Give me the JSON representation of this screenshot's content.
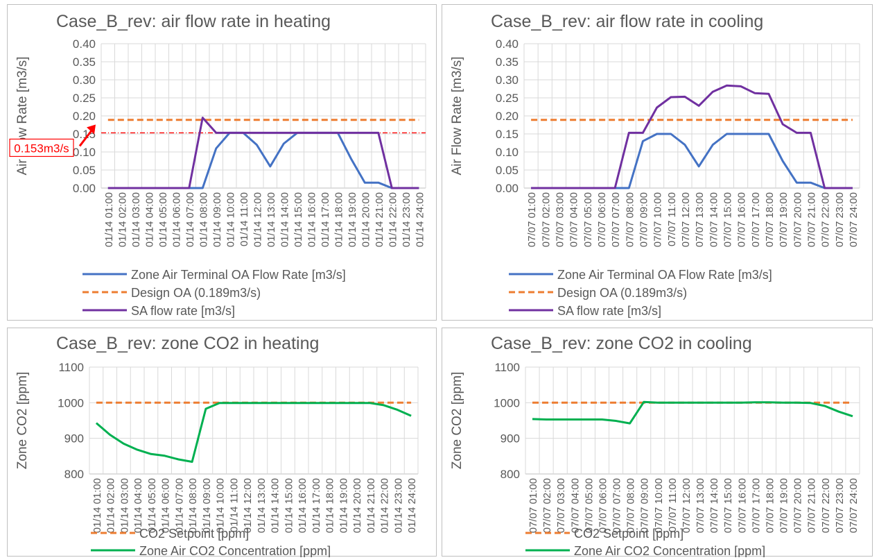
{
  "colors": {
    "oa_flow": "#4472C4",
    "design_oa": "#ED7D31",
    "sa_flow": "#7030A0",
    "co2_conc": "#00B050",
    "co2_setpoint": "#ED7D31",
    "annotation": "#FF0000",
    "grid": "#D9D9D9",
    "text": "#595959"
  },
  "chart_data": [
    {
      "type": "line",
      "title": "Case_B_rev: air flow rate in heating",
      "xlabel": "",
      "ylabel": "Air Flow Rate [m3/s]",
      "ylim": [
        0,
        0.4
      ],
      "yticks": [
        "0.00",
        "0.05",
        "0.10",
        "0.15",
        "0.20",
        "0.25",
        "0.30",
        "0.35",
        "0.40"
      ],
      "categories": [
        "01/14  01:00",
        "01/14  02:00",
        "01/14  03:00",
        "01/14  04:00",
        "01/14  05:00",
        "01/14  06:00",
        "01/14  07:00",
        "01/14  08:00",
        "01/14  09:00",
        "01/14  10:00",
        "01/14  11:00",
        "01/14  12:00",
        "01/14  13:00",
        "01/14  14:00",
        "01/14  15:00",
        "01/14  16:00",
        "01/14  17:00",
        "01/14  18:00",
        "01/14  19:00",
        "01/14  20:00",
        "01/14  21:00",
        "01/14  22:00",
        "01/14  23:00",
        "01/14  24:00"
      ],
      "series": [
        {
          "name": "Zone Air Terminal OA Flow Rate [m3/s]",
          "style": "solid",
          "values": [
            0,
            0,
            0,
            0,
            0,
            0,
            0,
            0,
            0.11,
            0.153,
            0.153,
            0.12,
            0.06,
            0.123,
            0.153,
            0.153,
            0.153,
            0.153,
            0.08,
            0.015,
            0.015,
            0,
            0,
            0
          ]
        },
        {
          "name": "Design OA  (0.189m3/s)",
          "style": "dashed",
          "values": [
            0.189,
            0.189,
            0.189,
            0.189,
            0.189,
            0.189,
            0.189,
            0.189,
            0.189,
            0.189,
            0.189,
            0.189,
            0.189,
            0.189,
            0.189,
            0.189,
            0.189,
            0.189,
            0.189,
            0.189,
            0.189,
            0.189,
            0.189,
            0.189
          ]
        },
        {
          "name": "SA flow rate [m3/s]",
          "style": "solid",
          "values": [
            0,
            0,
            0,
            0,
            0,
            0,
            0,
            0.195,
            0.153,
            0.153,
            0.153,
            0.153,
            0.153,
            0.153,
            0.153,
            0.153,
            0.153,
            0.153,
            0.153,
            0.153,
            0.153,
            0,
            0,
            0
          ]
        }
      ],
      "annotation": {
        "text": "0.153m3/s",
        "value": 0.153
      }
    },
    {
      "type": "line",
      "title": "Case_B_rev: air flow rate in cooling",
      "xlabel": "",
      "ylabel": "Air Flow Rate [m3/s]",
      "ylim": [
        0,
        0.4
      ],
      "yticks": [
        "0.00",
        "0.05",
        "0.10",
        "0.15",
        "0.20",
        "0.25",
        "0.30",
        "0.35",
        "0.40"
      ],
      "categories": [
        "07/07  01:00",
        "07/07  02:00",
        "07/07  03:00",
        "07/07  04:00",
        "07/07  05:00",
        "07/07  06:00",
        "07/07  07:00",
        "07/07  08:00",
        "07/07  09:00",
        "07/07  10:00",
        "07/07  11:00",
        "07/07  12:00",
        "07/07  13:00",
        "07/07  14:00",
        "07/07  15:00",
        "07/07  16:00",
        "07/07  17:00",
        "07/07  18:00",
        "07/07  19:00",
        "07/07  20:00",
        "07/07  21:00",
        "07/07  22:00",
        "07/07  23:00",
        "07/07  24:00"
      ],
      "series": [
        {
          "name": "Zone Air Terminal OA Flow Rate [m3/s]",
          "style": "solid",
          "values": [
            0,
            0,
            0,
            0,
            0,
            0,
            0,
            0,
            0.13,
            0.15,
            0.15,
            0.12,
            0.06,
            0.12,
            0.15,
            0.15,
            0.15,
            0.15,
            0.075,
            0.015,
            0.015,
            0,
            0,
            0
          ]
        },
        {
          "name": "Design OA  (0.189m3/s)",
          "style": "dashed",
          "values": [
            0.189,
            0.189,
            0.189,
            0.189,
            0.189,
            0.189,
            0.189,
            0.189,
            0.189,
            0.189,
            0.189,
            0.189,
            0.189,
            0.189,
            0.189,
            0.189,
            0.189,
            0.189,
            0.189,
            0.189,
            0.189,
            0.189,
            0.189,
            0.189
          ]
        },
        {
          "name": "SA flow rate [m3/s]",
          "style": "solid",
          "values": [
            0,
            0,
            0,
            0,
            0,
            0,
            0,
            0.153,
            0.153,
            0.223,
            0.252,
            0.253,
            0.228,
            0.267,
            0.284,
            0.282,
            0.263,
            0.261,
            0.177,
            0.153,
            0.153,
            0,
            0,
            0
          ]
        }
      ]
    },
    {
      "type": "line",
      "title": "Case_B_rev: zone CO2 in heating",
      "xlabel": "",
      "ylabel": "Zone CO2 [ppm]",
      "ylim": [
        800,
        1100
      ],
      "yticks": [
        "800",
        "900",
        "1000",
        "1100"
      ],
      "categories": [
        "01/14  01:00",
        "01/14  02:00",
        "01/14  03:00",
        "01/14  04:00",
        "01/14  05:00",
        "01/14  06:00",
        "01/14  07:00",
        "01/14  08:00",
        "01/14  09:00",
        "01/14  10:00",
        "01/14  11:00",
        "01/14  12:00",
        "01/14  13:00",
        "01/14  14:00",
        "01/14  15:00",
        "01/14  16:00",
        "01/14  17:00",
        "01/14  18:00",
        "01/14  19:00",
        "01/14  20:00",
        "01/14  21:00",
        "01/14  22:00",
        "01/14  23:00",
        "01/14  24:00"
      ],
      "series": [
        {
          "name": "CO2 Setpoint [ppm]",
          "style": "dashed",
          "values": [
            1000,
            1000,
            1000,
            1000,
            1000,
            1000,
            1000,
            1000,
            1000,
            1000,
            1000,
            1000,
            1000,
            1000,
            1000,
            1000,
            1000,
            1000,
            1000,
            1000,
            1000,
            1000,
            1000,
            1000
          ]
        },
        {
          "name": "Zone Air CO2 Concentration [ppm]",
          "style": "solid",
          "values": [
            943,
            910,
            885,
            868,
            856,
            851,
            841,
            834,
            983,
            999,
            999,
            999,
            999,
            999,
            999,
            999,
            999,
            999,
            999,
            999,
            999,
            993,
            980,
            963
          ]
        }
      ]
    },
    {
      "type": "line",
      "title": "Case_B_rev: zone CO2 in cooling",
      "xlabel": "",
      "ylabel": "Zone CO2 [ppm]",
      "ylim": [
        800,
        1100
      ],
      "yticks": [
        "800",
        "900",
        "1000",
        "1100"
      ],
      "categories": [
        "07/07  01:00",
        "07/07  02:00",
        "07/07  03:00",
        "07/07  04:00",
        "07/07  05:00",
        "07/07  06:00",
        "07/07  07:00",
        "07/07  08:00",
        "07/07  09:00",
        "07/07  10:00",
        "07/07  11:00",
        "07/07  12:00",
        "07/07  13:00",
        "07/07  14:00",
        "07/07  15:00",
        "07/07  16:00",
        "07/07  17:00",
        "07/07  18:00",
        "07/07  19:00",
        "07/07  20:00",
        "07/07  21:00",
        "07/07  22:00",
        "07/07  23:00",
        "07/07  24:00"
      ],
      "series": [
        {
          "name": "CO2 Setpoint [ppm]",
          "style": "dashed",
          "values": [
            1000,
            1000,
            1000,
            1000,
            1000,
            1000,
            1000,
            1000,
            1000,
            1000,
            1000,
            1000,
            1000,
            1000,
            1000,
            1000,
            1000,
            1000,
            1000,
            1000,
            1000,
            1000,
            1000,
            1000
          ]
        },
        {
          "name": "Zone Air CO2 Concentration [ppm]",
          "style": "solid",
          "values": [
            954,
            953,
            953,
            953,
            953,
            953,
            949,
            942,
            1002,
            1000,
            1000,
            1000,
            1000,
            1000,
            1000,
            1000,
            1001,
            1001,
            1000,
            1000,
            999,
            991,
            975,
            962
          ]
        }
      ]
    }
  ]
}
